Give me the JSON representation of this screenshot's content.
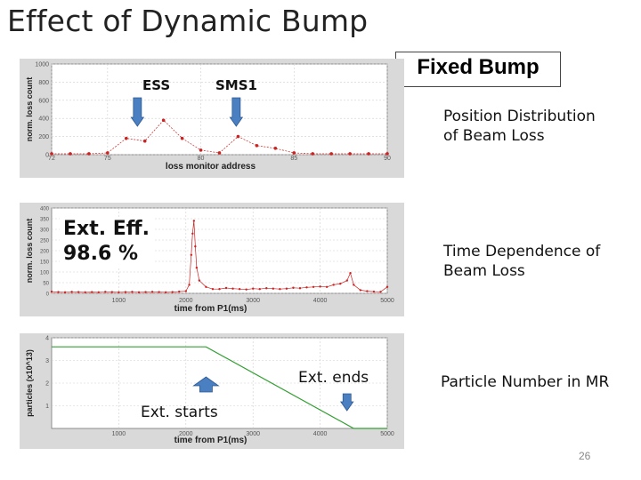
{
  "slide": {
    "title": "Effect of Dynamic Bump",
    "page_number": "26",
    "fixed_bump_label": "Fixed Bump"
  },
  "annotations": {
    "ess": "ESS",
    "sms1": "SMS1",
    "position_dist": [
      "Position Distribution",
      "of Beam Loss"
    ],
    "time_dep": [
      "Time Dependence of",
      "Beam Loss"
    ],
    "particle_number": "Particle Number in MR",
    "ext_eff": [
      "Ext. Eff.",
      "98.6 %"
    ],
    "ext_ends": "Ext. ends",
    "ext_starts": "Ext. starts"
  },
  "colors": {
    "loss_series": "#cc2222",
    "particles_series": "#33a033",
    "arrow_fill": "#4a7fc1",
    "panel_bg": "#d9d9d9"
  },
  "chart_data": [
    {
      "type": "line",
      "xlabel": "loss monitor address",
      "ylabel": "norm. loss count",
      "xlim": [
        72,
        90
      ],
      "ylim": [
        0,
        1000
      ],
      "x_ticks": [
        "72",
        "75",
        "80",
        "85",
        "90"
      ],
      "y_ticks": [
        "1000",
        "800",
        "600",
        "400",
        "200",
        "0"
      ],
      "x": [
        72,
        73,
        74,
        75,
        76,
        77,
        78,
        79,
        80,
        81,
        82,
        83,
        84,
        85,
        86,
        87,
        88,
        89,
        90
      ],
      "values": [
        10,
        10,
        10,
        20,
        180,
        150,
        380,
        180,
        50,
        20,
        200,
        100,
        70,
        20,
        10,
        10,
        10,
        10,
        10
      ],
      "arrows": [
        {
          "label": "ESS",
          "x": 76.6
        },
        {
          "label": "SMS1",
          "x": 81.9
        }
      ]
    },
    {
      "type": "line",
      "xlabel": "time from P1(ms)",
      "ylabel": "norm. loss count",
      "xlim": [
        0,
        5000
      ],
      "ylim": [
        0,
        400
      ],
      "x_ticks": [
        "1000",
        "2000",
        "3000",
        "4000",
        "5000"
      ],
      "y_ticks": [
        "400",
        "350",
        "300",
        "250",
        "200",
        "150",
        "100",
        "50",
        "0"
      ],
      "x": [
        0,
        100,
        200,
        300,
        400,
        500,
        600,
        700,
        800,
        900,
        1000,
        1100,
        1200,
        1300,
        1400,
        1500,
        1600,
        1700,
        1800,
        1900,
        2000,
        2050,
        2080,
        2100,
        2120,
        2140,
        2160,
        2200,
        2300,
        2400,
        2500,
        2600,
        2700,
        2800,
        2900,
        3000,
        3100,
        3200,
        3300,
        3400,
        3500,
        3600,
        3700,
        3800,
        3900,
        4000,
        4100,
        4200,
        4300,
        4400,
        4450,
        4500,
        4600,
        4700,
        4800,
        4900,
        5000
      ],
      "values": [
        8,
        6,
        5,
        7,
        6,
        5,
        6,
        5,
        7,
        6,
        5,
        6,
        7,
        5,
        6,
        7,
        6,
        5,
        6,
        8,
        10,
        40,
        180,
        280,
        340,
        220,
        120,
        60,
        30,
        20,
        20,
        25,
        22,
        20,
        18,
        22,
        20,
        24,
        22,
        20,
        22,
        26,
        24,
        28,
        30,
        32,
        30,
        40,
        45,
        60,
        95,
        40,
        15,
        10,
        8,
        7,
        30
      ]
    },
    {
      "type": "line",
      "xlabel": "time from P1(ms)",
      "ylabel": "particles (x10^13)",
      "xlim": [
        0,
        5000
      ],
      "ylim": [
        0,
        4
      ],
      "x_ticks": [
        "1000",
        "2000",
        "3000",
        "4000",
        "5000"
      ],
      "y_ticks": [
        "4",
        "3",
        "2",
        "1"
      ],
      "x": [
        0,
        2300,
        4500,
        5000
      ],
      "values": [
        3.6,
        3.6,
        0.0,
        0.0
      ],
      "arrows": [
        {
          "label": "Ext. starts",
          "x": 2300
        },
        {
          "label": "Ext. ends",
          "x": 4400
        }
      ]
    }
  ]
}
